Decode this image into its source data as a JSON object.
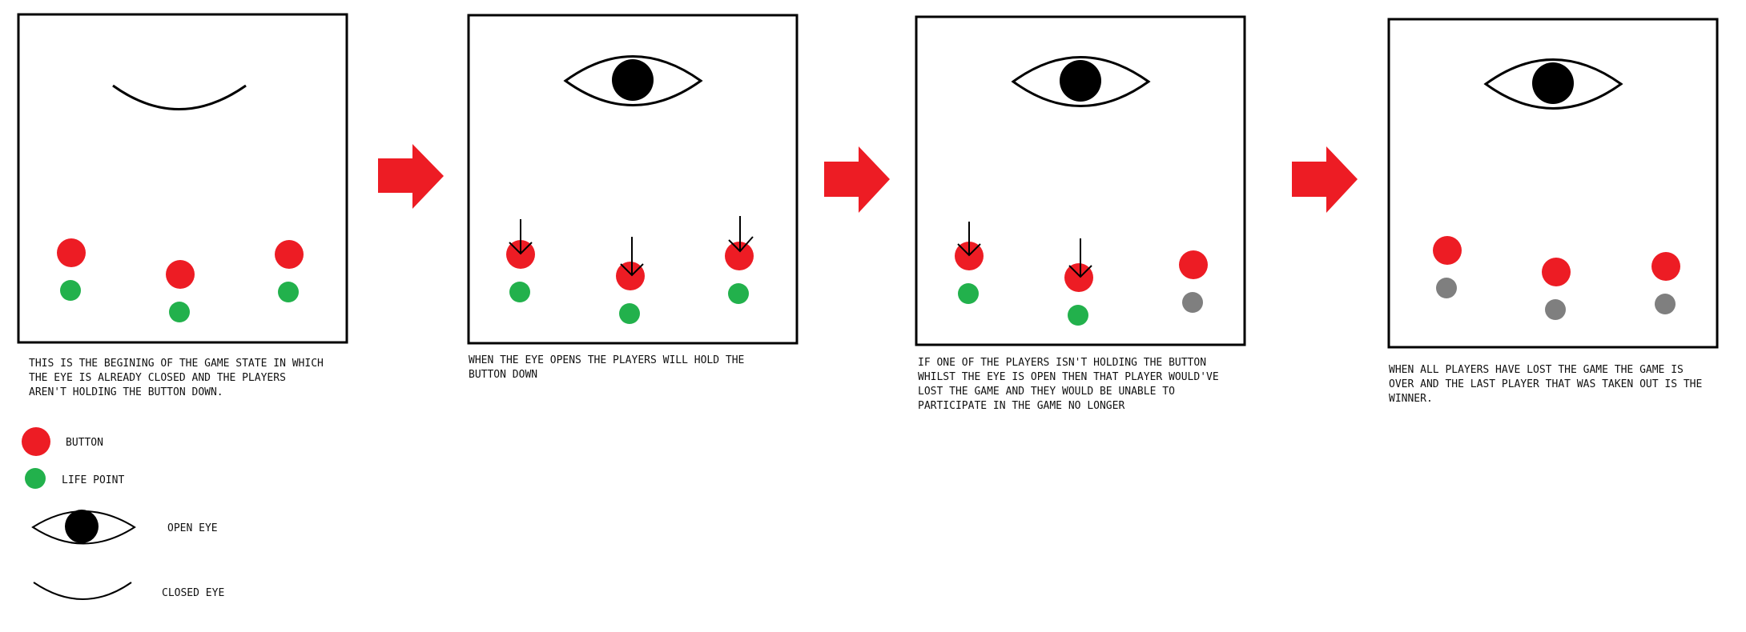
{
  "colors": {
    "button": "#ed1c24",
    "life_point": "#22b14c",
    "lost_life": "#7f7f7f",
    "arrow": "#ed1c24",
    "ink": "#000000"
  },
  "panels": [
    {
      "caption": [
        "THIS IS THE BEGINING OF THE GAME STATE IN WHICH",
        "THE EYE IS ALREADY CLOSED AND THE PLAYERS",
        "AREN'T HOLDING THE BUTTON DOWN."
      ],
      "eye": "closed",
      "players": [
        {
          "held": false,
          "alive": true
        },
        {
          "held": false,
          "alive": true
        },
        {
          "held": false,
          "alive": true
        }
      ]
    },
    {
      "caption": [
        "WHEN THE EYE OPENS THE PLAYERS WILL HOLD THE",
        "BUTTON DOWN"
      ],
      "eye": "open",
      "players": [
        {
          "held": true,
          "alive": true
        },
        {
          "held": true,
          "alive": true
        },
        {
          "held": true,
          "alive": true
        }
      ]
    },
    {
      "caption": [
        "IF ONE OF THE PLAYERS ISN'T HOLDING THE BUTTON",
        "WHILST THE EYE IS OPEN THEN THAT PLAYER WOULD'VE",
        "LOST THE GAME AND THEY WOULD BE UNABLE TO",
        "PARTICIPATE IN THE GAME NO LONGER"
      ],
      "eye": "open",
      "players": [
        {
          "held": true,
          "alive": true
        },
        {
          "held": true,
          "alive": true
        },
        {
          "held": false,
          "alive": false
        }
      ]
    },
    {
      "caption": [
        "WHEN ALL PLAYERS HAVE LOST THE GAME THE GAME IS",
        "OVER AND THE LAST PLAYER THAT WAS TAKEN OUT IS THE",
        "WINNER."
      ],
      "eye": "open",
      "players": [
        {
          "held": false,
          "alive": false
        },
        {
          "held": false,
          "alive": false
        },
        {
          "held": false,
          "alive": false
        }
      ]
    }
  ],
  "legend": {
    "button_label": "BUTTON",
    "life_point_label": "LIFE POINT",
    "open_eye_label": "OPEN EYE",
    "closed_eye_label": "CLOSED EYE"
  }
}
